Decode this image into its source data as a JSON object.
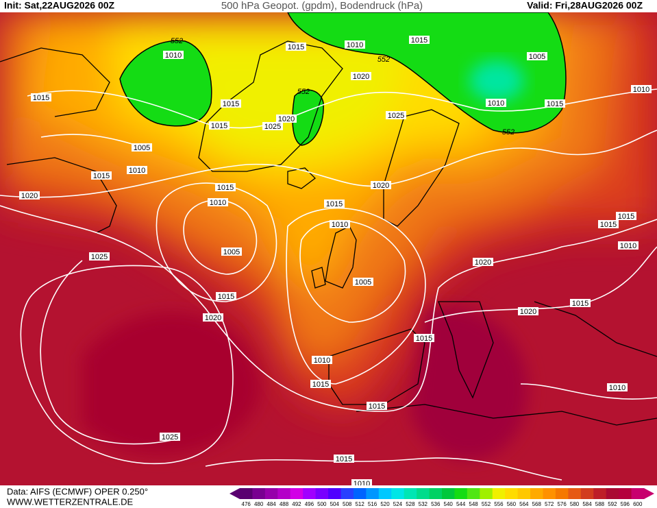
{
  "header": {
    "init": "Init: Sat,22AUG2026 00Z",
    "title": "500 hPa Geopot. (gpdm), Bodendruck (hPa)",
    "valid": "Valid: Fri,28AUG2026 00Z"
  },
  "footer": {
    "data": "Data: AIFS (ECMWF) OPER 0.250°",
    "site": "WWW.WETTERZENTRALE.DE"
  },
  "isobar_labels": [
    "1010",
    "1015",
    "1010",
    "1015",
    "1005",
    "1020",
    "1010",
    "1015",
    "1015",
    "1010",
    "1015",
    "1020",
    "1025",
    "1015",
    "1025",
    "1005",
    "1010",
    "1015",
    "1020",
    "1015",
    "1020",
    "1010",
    "1015",
    "1015",
    "1015",
    "1010",
    "1010",
    "1005",
    "1025",
    "1020",
    "1005",
    "1015",
    "1015",
    "1020",
    "1020",
    "1015",
    "1010",
    "1015",
    "1010",
    "1015",
    "1025",
    "1015",
    "1010"
  ],
  "geopotential_labels": [
    "552",
    "552",
    "552",
    "552"
  ],
  "colorbar": {
    "labels": [
      476,
      480,
      484,
      488,
      492,
      496,
      500,
      504,
      508,
      512,
      516,
      520,
      524,
      528,
      532,
      536,
      540,
      544,
      548,
      552,
      556,
      560,
      564,
      568,
      572,
      576,
      580,
      584,
      588,
      592,
      596,
      600
    ],
    "colors": [
      "#5a0070",
      "#780090",
      "#9600aa",
      "#b400c8",
      "#d200e6",
      "#a000ff",
      "#7800ff",
      "#5000ff",
      "#2840ff",
      "#0064ff",
      "#0096ff",
      "#00c8ff",
      "#00e6e6",
      "#00e6b4",
      "#00dc8c",
      "#00d264",
      "#00c83c",
      "#14dc14",
      "#50e614",
      "#a0f000",
      "#f0f000",
      "#ffdc00",
      "#ffc800",
      "#ffaa00",
      "#ff9100",
      "#f57800",
      "#e65a14",
      "#d23c1e",
      "#be1e28",
      "#aa0a32",
      "#b4003c",
      "#c8006e"
    ]
  }
}
